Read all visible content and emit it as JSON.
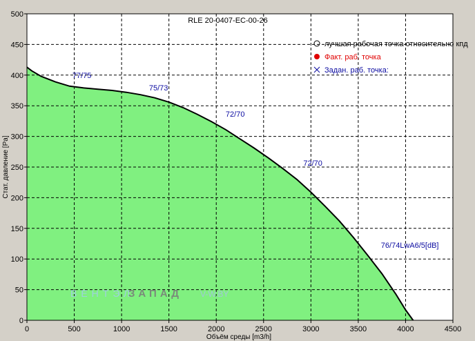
{
  "chart_data": {
    "type": "area",
    "title": "RLE 20-0407-EC-00-26",
    "xlabel": "Объём среды [m3/h]",
    "ylabel": "Стат. давление [Pa]",
    "xlim": [
      0,
      4500
    ],
    "ylim": [
      0,
      500
    ],
    "x_ticks": [
      "0",
      "500",
      "1000",
      "1500",
      "2000",
      "2500",
      "3000",
      "3500",
      "4000",
      "4500"
    ],
    "y_ticks": [
      "0",
      "50",
      "100",
      "150",
      "200",
      "250",
      "300",
      "350",
      "400",
      "450",
      "500"
    ],
    "grid": true,
    "colors": {
      "fill": "#80f080",
      "curve": "#000000",
      "annotation": "#0a0aa0",
      "grid": "#000000"
    },
    "series": [
      {
        "x": [
          0,
          50,
          150,
          300,
          450,
          600,
          750,
          900,
          1050,
          1200,
          1350,
          1500,
          1650,
          1800,
          1950,
          2100,
          2250,
          2400,
          2550,
          2700,
          2850,
          3000,
          3150,
          3300,
          3450,
          3600,
          3750,
          3900,
          4000,
          4080
        ],
        "y": [
          413,
          407,
          398,
          389,
          382,
          379,
          377,
          375,
          372,
          368,
          363,
          356,
          347,
          336,
          324,
          311,
          296,
          281,
          265,
          248,
          230,
          209,
          186,
          162,
          135,
          106,
          76,
          42,
          17,
          0
        ]
      }
    ],
    "annotations": [
      {
        "text": "77/75",
        "x": 480,
        "y": 395
      },
      {
        "text": "75/73",
        "x": 1290,
        "y": 375
      },
      {
        "text": "72/70",
        "x": 2100,
        "y": 332
      },
      {
        "text": "72/70",
        "x": 2920,
        "y": 252
      },
      {
        "text": "76/74",
        "x": 3740,
        "y": 118
      },
      {
        "text": "LwA6/5[dB]",
        "x": 3940,
        "y": 118
      }
    ],
    "legend": {
      "placement": "top-right",
      "items": [
        {
          "label": "лучшая рабочая точка относительно кпд",
          "marker": "open-circle",
          "color": "#000000"
        },
        {
          "label": "Факт. раб. точка",
          "marker": "filled-circle",
          "color": "#e00000"
        },
        {
          "label": "Задан. раб. точка:",
          "marker": "cross",
          "color": "#0a0aa0"
        }
      ]
    },
    "watermark": {
      "brand1": "ВЕНТЭЛ",
      "brand2": "ЗАПАД",
      "site": "V-W.BY"
    }
  }
}
